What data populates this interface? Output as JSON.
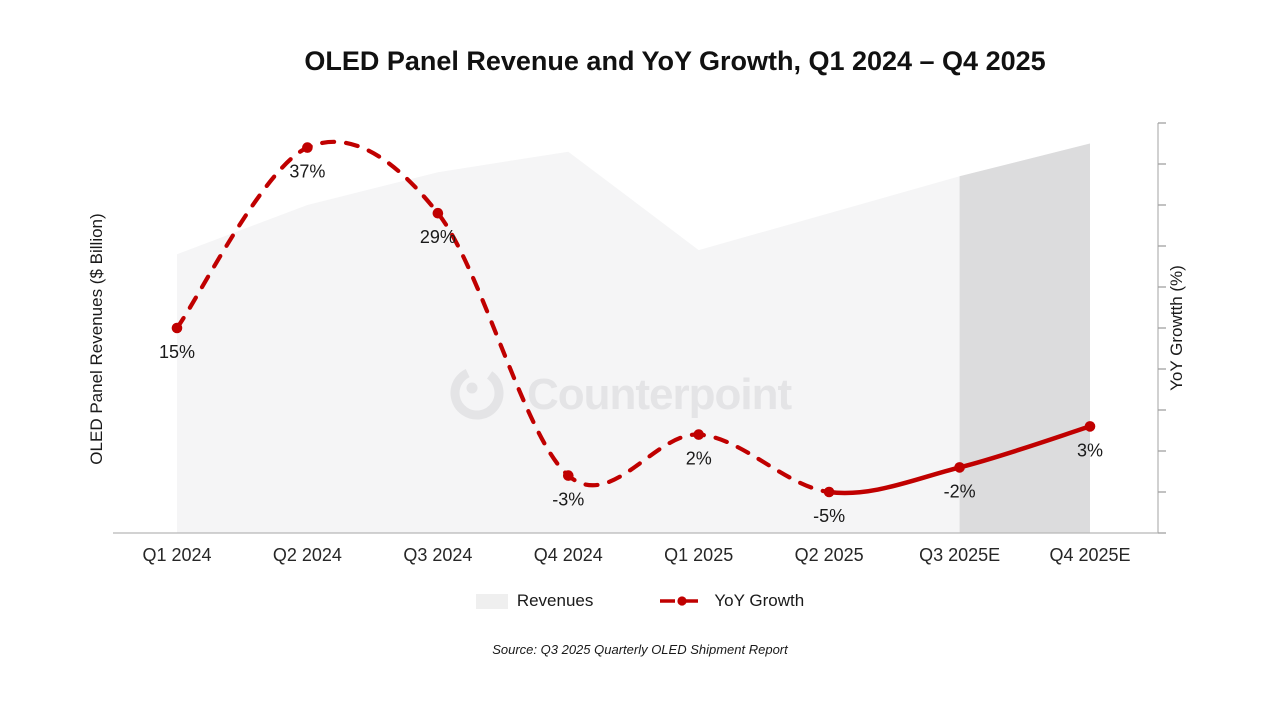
{
  "title": "OLED Panel Revenue and YoY Growth, Q1 2024 – Q4 2025",
  "watermark": {
    "text": "Counterpoint"
  },
  "chart_data": {
    "type": "combo",
    "subtypes": [
      "area",
      "line"
    ],
    "title": "OLED Panel Revenue and YoY Growth, Q1 2024 – Q4 2025",
    "categories": [
      "Q1 2024",
      "Q2 2024",
      "Q3 2024",
      "Q4 2024",
      "Q1 2025",
      "Q2 2025",
      "Q3 2025E",
      "Q4 2025E"
    ],
    "series": [
      {
        "name": "Revenues",
        "type": "area",
        "axis": "left",
        "unit": "index 0-100 (axis unlabeled, heights estimated from pixels)",
        "values_index": [
          68,
          80,
          88,
          93,
          69,
          78,
          87,
          95
        ],
        "forecast_start_index": 6
      },
      {
        "name": "YoY Growth",
        "type": "line",
        "axis": "right",
        "unit": "%",
        "values_pct": [
          15,
          37,
          29,
          -3,
          2,
          -5,
          -2,
          3
        ],
        "labels": [
          "15%",
          "37%",
          "29%",
          "-3%",
          "2%",
          "-5%",
          "-2%",
          "3%"
        ],
        "dashed_until_index": 5
      }
    ],
    "left_axis": {
      "label": "OLED Panel Revenues ($ Billion)",
      "tick_labels_visible": false
    },
    "right_axis": {
      "label": "YoY Growtth (%)",
      "range": [
        -10,
        40
      ],
      "tick_step": 5,
      "tick_labels_visible": false
    },
    "grid": false,
    "legend_position": "bottom"
  },
  "legend": {
    "items": [
      {
        "label": "Revenues",
        "swatch": "gray-area"
      },
      {
        "label": "YoY Growth",
        "swatch": "red-dashed-line-with-dot"
      }
    ]
  },
  "source": "Source: Q3 2025 Quarterly OLED Shipment Report",
  "colors": {
    "line_red": "#C00000",
    "area": "#F5F5F6",
    "area_forecast": "#DCDCDD",
    "axis_line": "#B8B8B8",
    "tick": "#A0A0A0",
    "watermark": "#E4E4E6",
    "data_label": "#1A1A1A",
    "category_label": "#262626",
    "legend_swatch": "#EFEFEF"
  }
}
